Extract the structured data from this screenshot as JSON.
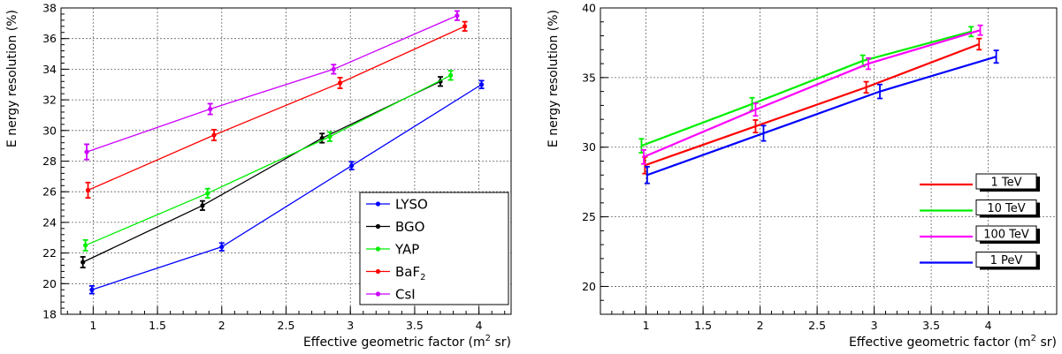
{
  "chart_data": [
    {
      "type": "line",
      "xlabel": "Effective geometric factor (m",
      "xlabel_sup": "2",
      "xlabel_tail": " sr)",
      "ylabel": "E nergy resolution (%)",
      "xlim": [
        0.75,
        4.25
      ],
      "ylim": [
        18,
        38
      ],
      "xticks": [
        "1",
        "1.5",
        "2",
        "2.5",
        "3",
        "3.5",
        "4"
      ],
      "xtick_values": [
        1,
        1.5,
        2,
        2.5,
        3,
        3.5,
        4
      ],
      "yticks": [
        "18",
        "20",
        "22",
        "24",
        "26",
        "28",
        "30",
        "32",
        "34",
        "36",
        "38"
      ],
      "ytick_values": [
        18,
        20,
        22,
        24,
        26,
        28,
        30,
        32,
        34,
        36,
        38
      ],
      "grid": true,
      "legend": "bottom-right",
      "series": [
        {
          "name": "LYSO",
          "sub": "",
          "color": "#0000ff",
          "x": [
            0.99,
            2.0,
            3.01,
            4.02
          ],
          "y": [
            19.6,
            22.4,
            27.7,
            33.0
          ],
          "err": [
            0.25,
            0.25,
            0.25,
            0.25
          ]
        },
        {
          "name": "BGO",
          "sub": "",
          "color": "#000000",
          "x": [
            0.92,
            1.85,
            2.78,
            3.7
          ],
          "y": [
            21.4,
            25.1,
            29.5,
            33.2
          ],
          "err": [
            0.35,
            0.3,
            0.3,
            0.3
          ]
        },
        {
          "name": "YAP",
          "sub": "",
          "color": "#00ee00",
          "x": [
            0.94,
            1.89,
            2.84,
            3.78
          ],
          "y": [
            22.5,
            25.9,
            29.6,
            33.6
          ],
          "err": [
            0.35,
            0.3,
            0.3,
            0.3
          ]
        },
        {
          "name": "BaF",
          "sub": "2",
          "color": "#ff0000",
          "x": [
            0.96,
            1.94,
            2.92,
            3.89
          ],
          "y": [
            26.1,
            29.7,
            33.1,
            36.8
          ],
          "err": [
            0.5,
            0.35,
            0.35,
            0.3
          ]
        },
        {
          "name": "CsI",
          "sub": "",
          "color": "#cc00ff",
          "x": [
            0.95,
            1.91,
            2.87,
            3.83
          ],
          "y": [
            28.6,
            31.4,
            34.0,
            37.5
          ],
          "err": [
            0.5,
            0.35,
            0.3,
            0.3
          ]
        }
      ]
    },
    {
      "type": "line",
      "xlabel": "Effective geometric factor (m",
      "xlabel_sup": "2",
      "xlabel_tail": " sr)",
      "ylabel": "E nergy resolution (%)",
      "xlim": [
        0.6,
        4.6
      ],
      "ylim": [
        18,
        40
      ],
      "xticks": [
        "1",
        "1.5",
        "2",
        "2.5",
        "3",
        "3.5",
        "4"
      ],
      "xtick_values": [
        1,
        1.5,
        2,
        2.5,
        3,
        3.5,
        4
      ],
      "yticks": [
        "20",
        "25",
        "30",
        "35",
        "40"
      ],
      "ytick_values": [
        20,
        25,
        30,
        35,
        40
      ],
      "grid": true,
      "legend": "bottom-right",
      "series": [
        {
          "name": "1 TeV",
          "color": "#ff0000",
          "x": [
            0.99,
            1.96,
            2.93,
            3.92
          ],
          "y": [
            28.7,
            31.5,
            34.3,
            37.4
          ],
          "err": [
            0.6,
            0.45,
            0.4,
            0.4
          ]
        },
        {
          "name": "10 TeV",
          "color": "#00ee00",
          "x": [
            0.96,
            1.93,
            2.9,
            3.85
          ],
          "y": [
            30.1,
            33.1,
            36.2,
            38.3
          ],
          "err": [
            0.5,
            0.45,
            0.4,
            0.35
          ]
        },
        {
          "name": "100 TeV",
          "color": "#ff00ff",
          "x": [
            0.98,
            1.96,
            2.95,
            3.93
          ],
          "y": [
            29.3,
            32.7,
            36.0,
            38.4
          ],
          "err": [
            0.5,
            0.45,
            0.4,
            0.35
          ]
        },
        {
          "name": "1 PeV",
          "color": "#0000ff",
          "x": [
            1.01,
            2.03,
            3.05,
            4.07
          ],
          "y": [
            28.0,
            31.0,
            34.0,
            36.5
          ],
          "err": [
            0.6,
            0.55,
            0.5,
            0.45
          ]
        }
      ]
    }
  ]
}
